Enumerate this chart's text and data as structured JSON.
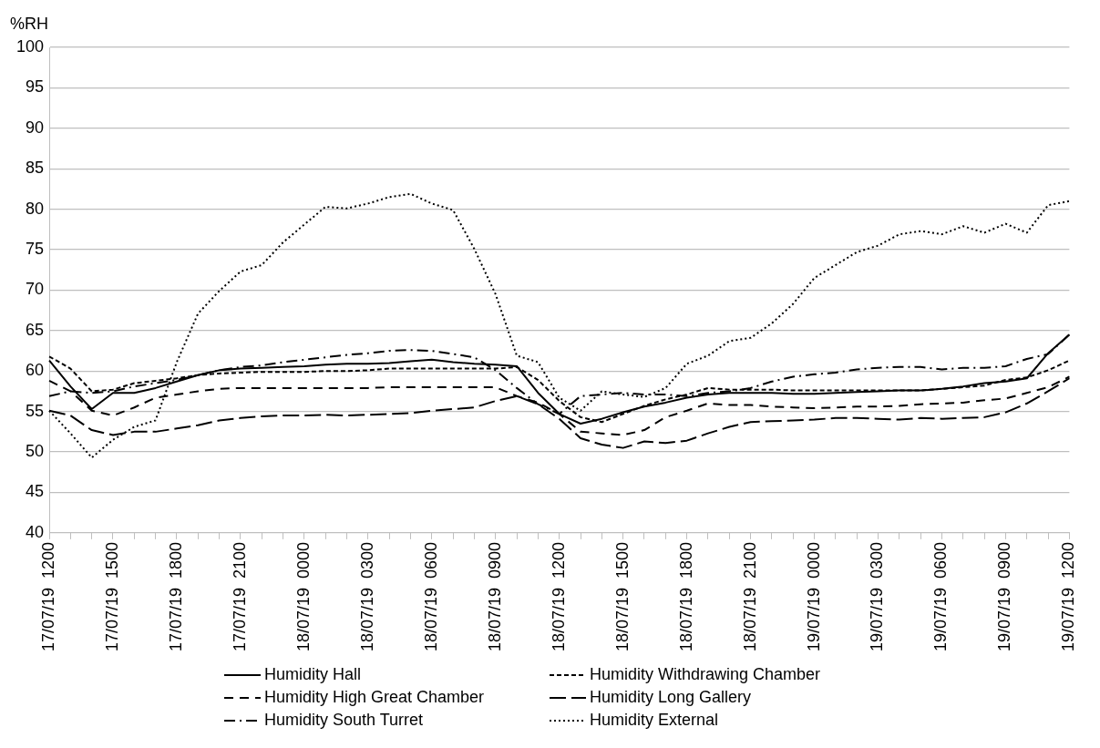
{
  "chart_data": {
    "type": "line",
    "ylabel": "%RH",
    "categories": [
      "17/07/19  1200",
      null,
      null,
      "17/07/19  1500",
      null,
      null,
      "17/07/19  1800",
      null,
      null,
      "17/07/19  2100",
      null,
      null,
      "18/07/19  0000",
      null,
      null,
      "18/07/19  0300",
      null,
      null,
      "18/07/19  0600",
      null,
      null,
      "18/07/19  0900",
      null,
      null,
      "18/07/19  1200",
      null,
      null,
      "18/07/19  1500",
      null,
      null,
      "18/07/19  1800",
      null,
      null,
      "18/07/19  2100",
      null,
      null,
      "19/07/19  0000",
      null,
      null,
      "19/07/19  0300",
      null,
      null,
      "19/07/19  0600",
      null,
      null,
      "19/07/19  0900",
      null,
      null,
      "19/07/19  1200"
    ],
    "series": [
      {
        "name": "Humidity Hall",
        "color": "#000000",
        "line_style": "solid",
        "values": [
          61.3,
          58.1,
          55.3,
          57.3,
          57.3,
          57.9,
          58.7,
          59.5,
          60.1,
          60.3,
          60.4,
          60.5,
          60.6,
          60.8,
          60.9,
          60.9,
          61.0,
          61.2,
          61.4,
          61.1,
          60.9,
          60.8,
          60.6,
          57.3,
          54.7,
          53.5,
          54.1,
          54.9,
          55.6,
          56.1,
          56.7,
          57.1,
          57.3,
          57.3,
          57.3,
          57.2,
          57.2,
          57.3,
          57.4,
          57.5,
          57.6,
          57.6,
          57.8,
          58.1,
          58.5,
          58.7,
          59.1,
          62.2,
          64.5
        ]
      },
      {
        "name": "Humidity Withdrawing Chamber",
        "color": "#000000",
        "line_style": "dashed",
        "values": [
          61.8,
          60.3,
          57.5,
          57.7,
          58.5,
          58.8,
          59.1,
          59.5,
          59.7,
          59.8,
          59.9,
          59.9,
          59.9,
          60.0,
          60.0,
          60.1,
          60.3,
          60.3,
          60.3,
          60.3,
          60.3,
          60.3,
          60.5,
          58.9,
          56.3,
          54.3,
          53.7,
          54.7,
          55.7,
          56.5,
          57.1,
          57.9,
          57.7,
          57.7,
          57.7,
          57.6,
          57.6,
          57.6,
          57.6,
          57.6,
          57.6,
          57.6,
          57.8,
          58.0,
          58.2,
          58.9,
          59.2,
          60.1,
          61.3
        ]
      },
      {
        "name": "Humidity High Great Chamber",
        "color": "#000000",
        "line_style": "long-dashed",
        "values": [
          58.8,
          57.5,
          55.1,
          54.5,
          55.5,
          56.7,
          57.1,
          57.5,
          57.8,
          57.9,
          57.9,
          57.9,
          57.9,
          57.9,
          57.9,
          57.9,
          58.0,
          58.0,
          58.0,
          58.0,
          58.0,
          58.0,
          56.9,
          56.1,
          54.7,
          52.5,
          52.3,
          52.1,
          52.7,
          54.3,
          55.1,
          56.0,
          55.8,
          55.8,
          55.6,
          55.5,
          55.4,
          55.5,
          55.6,
          55.6,
          55.7,
          55.9,
          56.0,
          56.1,
          56.4,
          56.6,
          57.3,
          58.0,
          59.3
        ]
      },
      {
        "name": "Humidity Long Gallery",
        "color": "#000000",
        "line_style": "very-long-dashed",
        "values": [
          55.1,
          54.5,
          52.7,
          52.1,
          52.5,
          52.5,
          52.9,
          53.3,
          53.9,
          54.2,
          54.4,
          54.5,
          54.5,
          54.6,
          54.5,
          54.6,
          54.7,
          54.8,
          55.1,
          55.3,
          55.5,
          56.3,
          56.9,
          55.9,
          54.1,
          51.7,
          50.9,
          50.5,
          51.3,
          51.1,
          51.4,
          52.3,
          53.1,
          53.7,
          53.8,
          53.9,
          54.0,
          54.2,
          54.2,
          54.1,
          54.0,
          54.2,
          54.1,
          54.2,
          54.3,
          54.9,
          56.0,
          57.5,
          59.1
        ]
      },
      {
        "name": "Humidity South Turret",
        "color": "#000000",
        "line_style": "dash-dot",
        "values": [
          56.9,
          57.5,
          57.3,
          57.5,
          58.1,
          58.5,
          58.9,
          59.5,
          60.1,
          60.5,
          60.7,
          61.1,
          61.4,
          61.7,
          62.0,
          62.2,
          62.5,
          62.6,
          62.5,
          62.1,
          61.7,
          60.1,
          57.9,
          55.9,
          54.7,
          56.9,
          57.1,
          57.3,
          57.1,
          57.1,
          56.9,
          57.3,
          57.5,
          57.9,
          58.7,
          59.3,
          59.6,
          59.8,
          60.2,
          60.4,
          60.5,
          60.5,
          60.2,
          60.4,
          60.4,
          60.6,
          61.5,
          62.1,
          64.5
        ]
      },
      {
        "name": "Humidity External",
        "color": "#000000",
        "line_style": "dotted",
        "values": [
          55.1,
          52.3,
          49.3,
          51.5,
          53.1,
          53.9,
          61.1,
          67.1,
          69.9,
          72.3,
          73.1,
          75.9,
          78.1,
          80.3,
          80.1,
          80.7,
          81.5,
          81.9,
          80.7,
          79.9,
          75.1,
          69.5,
          61.9,
          61.1,
          56.7,
          55.1,
          57.5,
          57.1,
          56.8,
          57.9,
          60.9,
          61.9,
          63.7,
          64.1,
          65.9,
          68.3,
          71.5,
          73.1,
          74.7,
          75.5,
          76.9,
          77.3,
          76.9,
          77.9,
          77.1,
          78.2,
          77.1,
          80.5,
          81.0
        ]
      }
    ],
    "ylim": [
      40,
      100
    ],
    "yticks": [
      40,
      45,
      50,
      55,
      60,
      65,
      70,
      75,
      80,
      85,
      90,
      95,
      100
    ],
    "grid": "y",
    "legend": "bottom",
    "marker": "none"
  }
}
